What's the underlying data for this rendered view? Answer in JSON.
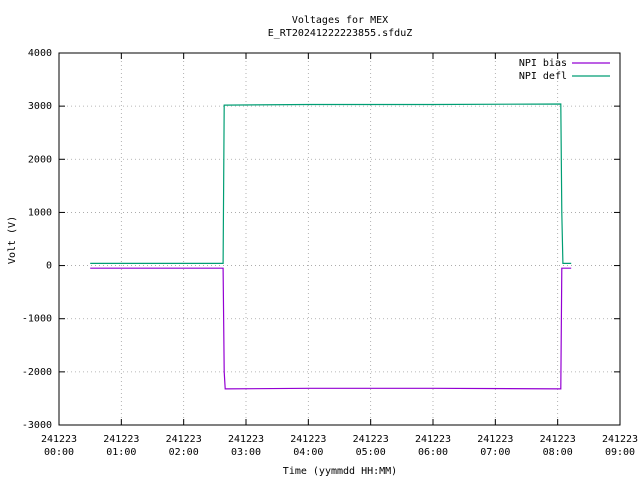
{
  "chart_data": {
    "type": "line",
    "title": "Voltages for MEX",
    "subtitle": "E_RT20241222223855.sfduZ",
    "x_label": "Time (yymmdd HH:MM)",
    "y_label": "Volt (V)",
    "x": [
      "241223 00:30",
      "241223 02:38",
      "241223 02:39",
      "241223 02:40",
      "241223 04:00",
      "241223 06:00",
      "241223 08:03",
      "241223 08:04",
      "241223 08:05",
      "241223 08:13"
    ],
    "series": [
      {
        "name": "NPI bias",
        "color": "#9400d3",
        "values": [
          -50,
          -50,
          -2000,
          -2320,
          -2310,
          -2310,
          -2320,
          -50,
          -50,
          -50
        ]
      },
      {
        "name": "NPI defl",
        "color": "#009e73",
        "values": [
          40,
          40,
          3020,
          3020,
          3030,
          3030,
          3040,
          1000,
          40,
          40
        ]
      }
    ],
    "xlim": [
      "241223 00:00",
      "241223 09:00"
    ],
    "xticks": [
      {
        "date": "241223",
        "time": "00:00"
      },
      {
        "date": "241223",
        "time": "01:00"
      },
      {
        "date": "241223",
        "time": "02:00"
      },
      {
        "date": "241223",
        "time": "03:00"
      },
      {
        "date": "241223",
        "time": "04:00"
      },
      {
        "date": "241223",
        "time": "05:00"
      },
      {
        "date": "241223",
        "time": "06:00"
      },
      {
        "date": "241223",
        "time": "07:00"
      },
      {
        "date": "241223",
        "time": "08:00"
      },
      {
        "date": "241223",
        "time": "09:00"
      }
    ],
    "ylim": [
      -3000,
      4000
    ],
    "yticks": [
      -3000,
      -2000,
      -1000,
      0,
      1000,
      2000,
      3000,
      4000
    ],
    "grid": true,
    "legend": "top-right"
  }
}
